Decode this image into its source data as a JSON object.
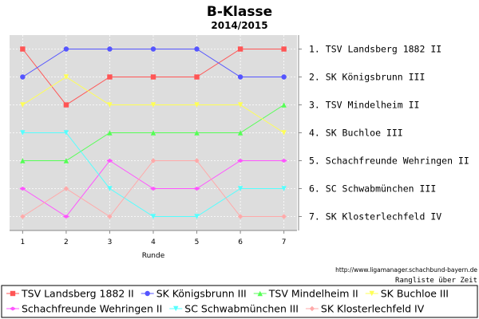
{
  "chart_data": {
    "type": "line",
    "title": "B-Klasse",
    "subtitle": "2014/2015",
    "xlabel": "Runde",
    "x": [
      1,
      2,
      3,
      4,
      5,
      6,
      7
    ],
    "xlim": [
      0.7,
      7.3
    ],
    "ylim": [
      0.5,
      7.5
    ],
    "y_inverted": true,
    "grid": true,
    "legend_placement": "bottom",
    "source_url": "http://www.ligamanager.schachbund-bayern.de",
    "footer_label": "Rangliste über Zeit",
    "rank_labels": [
      "1. TSV Landsberg 1882 II",
      "2. SK Königsbrunn III",
      "3. TSV Mindelheim II",
      "4. SK Buchloe III",
      "5. Schachfreunde Wehringen II",
      "6. SC Schwabmünchen III",
      "7. SK Klosterlechfeld IV"
    ],
    "series": [
      {
        "name": "TSV Landsberg 1882 II",
        "color": "#ff5555",
        "marker": "square",
        "values": [
          1,
          3,
          2,
          2,
          2,
          1,
          1
        ]
      },
      {
        "name": "SK Königsbrunn III",
        "color": "#5555ff",
        "marker": "circle",
        "values": [
          2,
          1,
          1,
          1,
          1,
          2,
          2
        ]
      },
      {
        "name": "TSV Mindelheim II",
        "color": "#55ff55",
        "marker": "triangle-up",
        "values": [
          5,
          5,
          4,
          4,
          4,
          4,
          3
        ]
      },
      {
        "name": "SK Buchloe III",
        "color": "#ffff55",
        "marker": "triangle-down",
        "values": [
          3,
          2,
          3,
          3,
          3,
          3,
          4
        ]
      },
      {
        "name": "Schachfreunde Wehringen II",
        "color": "#ff55ff",
        "marker": "diamond-h",
        "values": [
          6,
          7,
          5,
          6,
          6,
          5,
          5
        ]
      },
      {
        "name": "SC Schwabmünchen III",
        "color": "#55ffff",
        "marker": "triangle-down",
        "values": [
          4,
          4,
          6,
          7,
          7,
          6,
          6
        ]
      },
      {
        "name": "SK Klosterlechfeld IV",
        "color": "#ffaaaa",
        "marker": "diamond",
        "values": [
          7,
          6,
          7,
          5,
          5,
          7,
          7
        ]
      }
    ]
  }
}
